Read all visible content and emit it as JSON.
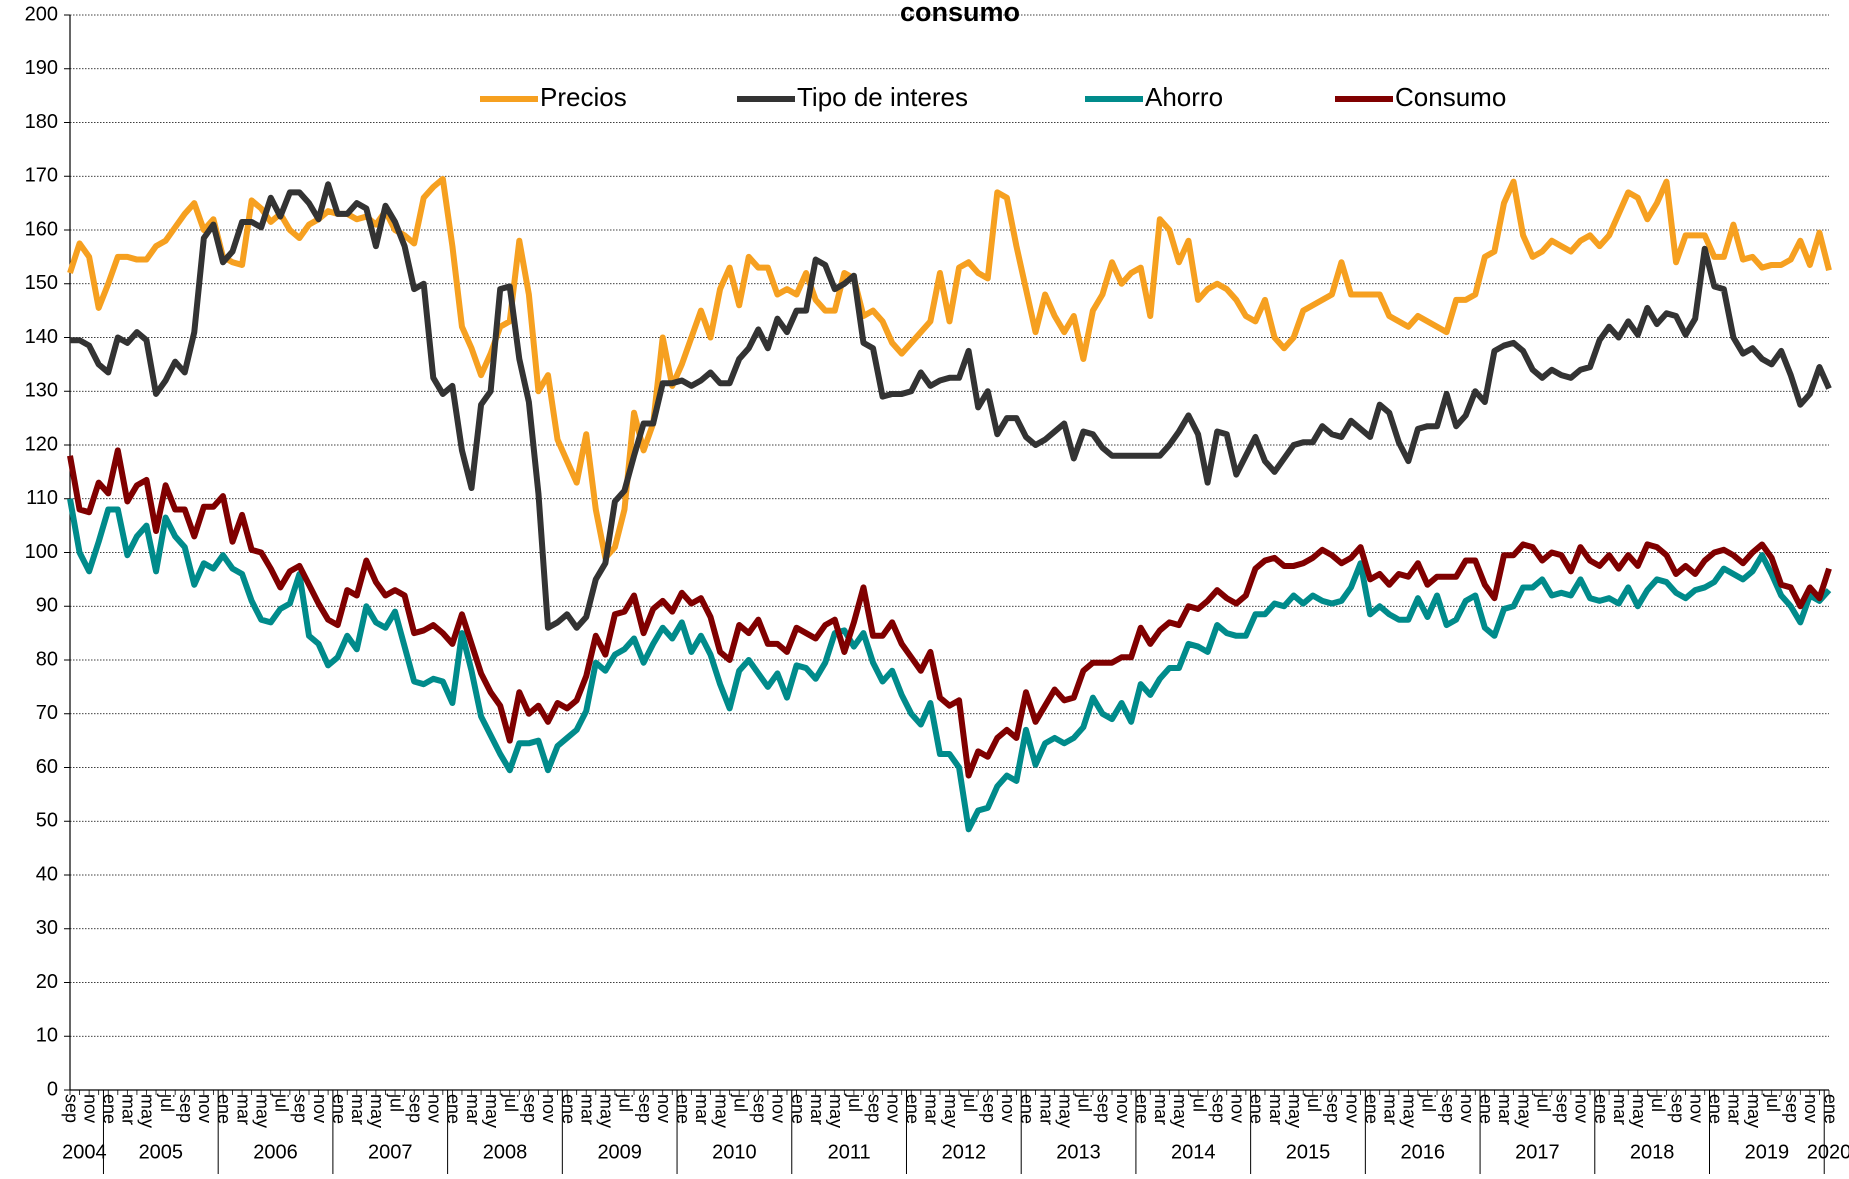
{
  "chart_data": {
    "type": "line",
    "title": "consumo",
    "categories": [
      "sep",
      null,
      "nov",
      null,
      "ene",
      null,
      "mar",
      null,
      "may",
      null,
      "jul",
      null,
      "sep",
      null,
      "nov",
      null,
      "ene",
      null,
      "mar",
      null,
      "may",
      null,
      "jul",
      null,
      "sep",
      null,
      "nov",
      null,
      "ene",
      null,
      "mar",
      null,
      "may",
      null,
      "jul",
      null,
      "sep",
      null,
      "nov",
      null,
      "ene",
      null,
      "mar",
      null,
      "may",
      null,
      "jul",
      null,
      "sep",
      null,
      "nov",
      null,
      "ene",
      null,
      "mar",
      null,
      "may",
      null,
      "jul",
      null,
      "sep",
      null,
      "nov",
      null,
      "ene",
      null,
      "mar",
      null,
      "may",
      null,
      "jul",
      null,
      "sep",
      null,
      "nov",
      null,
      "ene",
      null,
      "mar",
      null,
      "may",
      null,
      "jul",
      null,
      "sep",
      null,
      "nov",
      null,
      "ene",
      null,
      "mar",
      null,
      "may",
      null,
      "jul",
      null,
      "sep",
      null,
      "nov",
      null,
      "ene",
      null,
      "mar",
      null,
      "may",
      null,
      "jul",
      null,
      "sep",
      null,
      "nov",
      null,
      "ene",
      null,
      "mar",
      null,
      "may",
      null,
      "jul",
      null,
      "sep",
      null,
      "nov",
      null,
      "ene",
      null,
      "mar",
      null,
      "may",
      null,
      "jul",
      null,
      "sep",
      null,
      "nov",
      null,
      "ene",
      null,
      "mar",
      null,
      "may",
      null,
      "jul",
      null,
      "sep",
      null,
      "nov",
      null,
      "ene",
      null,
      "mar",
      null,
      "may",
      null,
      "jul",
      null,
      "sep",
      null,
      "nov",
      null,
      "ene",
      null,
      "mar",
      null,
      "may",
      null,
      "jul",
      null,
      "sep",
      null,
      "nov",
      null,
      "ene",
      null,
      "mar",
      null,
      "may",
      null,
      "jul",
      null,
      "sep",
      null,
      "nov",
      null,
      "ene"
    ],
    "year_labels": [
      "2004",
      "2005",
      "2006",
      "2007",
      "2008",
      "2009",
      "2010",
      "2011",
      "2012",
      "2013",
      "2014",
      "2015",
      "2016",
      "2017",
      "2018",
      "2019",
      "2020"
    ],
    "series": [
      {
        "name": "Precios",
        "color": "#f6a020",
        "values": [
          152,
          157.5,
          155,
          145.5,
          150,
          155,
          155,
          154.5,
          154.5,
          157,
          158,
          160.5,
          163,
          165,
          160,
          162,
          155,
          154,
          153.5,
          165.5,
          164,
          161.5,
          163,
          160,
          158.5,
          161,
          162,
          163.5,
          163,
          163,
          162,
          162.5,
          161,
          163.5,
          160,
          159,
          157.5,
          166,
          168,
          169.5,
          157,
          142,
          138,
          133,
          137,
          142,
          143,
          158,
          148,
          130,
          133,
          121,
          117,
          113,
          122,
          108,
          99,
          101,
          108,
          126,
          119,
          124,
          140,
          131,
          135,
          140,
          145,
          140,
          149,
          153,
          146,
          155,
          153,
          153,
          148,
          149,
          148,
          152,
          147,
          145,
          145,
          152,
          151,
          144,
          145,
          143,
          139,
          137,
          139,
          141,
          143,
          152,
          143,
          153,
          154,
          152,
          151,
          167,
          166,
          157,
          149,
          141,
          148,
          144,
          141,
          144,
          136,
          145,
          148,
          154,
          150,
          152,
          153,
          144,
          162,
          160,
          154,
          158,
          147,
          149,
          150,
          149,
          147,
          144,
          143,
          147,
          140,
          138,
          140,
          145,
          146,
          147,
          148,
          154,
          148,
          148,
          148,
          148,
          144,
          143,
          142,
          144,
          143,
          142,
          141,
          147,
          147,
          148,
          155,
          156,
          165,
          169,
          159,
          155,
          156,
          158,
          157,
          156,
          158,
          159,
          157,
          159,
          163,
          167,
          166,
          162,
          165,
          169,
          154,
          159,
          159,
          159,
          155,
          155,
          161,
          154.5,
          155,
          153,
          153.5,
          153.5,
          154.5,
          158,
          153.5,
          159.5,
          152.5
        ]
      },
      {
        "name": "Tipo de interes",
        "color": "#333333",
        "values": [
          139.5,
          139.5,
          138.5,
          135,
          133.5,
          140,
          139,
          141,
          139.5,
          129.5,
          132,
          135.5,
          133.5,
          141,
          158.5,
          161,
          154,
          156,
          161.5,
          161.5,
          160.5,
          166,
          162.5,
          167,
          167,
          165,
          162,
          168.5,
          163,
          163,
          165,
          164,
          157,
          164.5,
          161.5,
          157,
          149,
          150,
          132.5,
          129.5,
          131,
          119,
          112,
          127.5,
          130,
          149,
          149.5,
          136,
          128,
          111,
          86,
          87,
          88.5,
          86,
          88,
          95,
          98,
          109.5,
          111.5,
          118,
          124,
          124,
          131.5,
          131.5,
          132,
          131,
          132,
          133.5,
          131.5,
          131.5,
          136,
          138,
          141.5,
          138,
          143.5,
          141,
          145,
          145,
          154.5,
          153.5,
          149,
          150,
          151.5,
          139,
          138,
          129,
          129.5,
          129.5,
          130,
          133.5,
          131,
          132,
          132.5,
          132.5,
          137.5,
          127,
          130,
          122,
          125,
          125,
          121.5,
          120,
          121,
          122.5,
          124,
          117.5,
          122.5,
          122,
          119.5,
          118,
          118,
          118,
          118,
          118,
          118,
          120,
          122.5,
          125.5,
          122,
          113,
          122.5,
          122,
          114.5,
          118,
          121.5,
          117,
          115,
          117.5,
          120,
          120.5,
          120.5,
          123.5,
          122,
          121.5,
          124.5,
          123,
          121.5,
          127.5,
          126,
          120.5,
          117,
          123,
          123.5,
          123.5,
          129.5,
          123.5,
          125.5,
          130,
          128,
          137.5,
          138.5,
          139,
          137.5,
          134,
          132.5,
          134,
          133,
          132.5,
          134,
          134.5,
          139.5,
          142,
          140,
          143,
          140.5,
          145.5,
          142.5,
          144.5,
          144,
          140.5,
          143.5,
          156.5,
          149.5,
          149,
          140,
          137,
          138,
          136,
          135,
          137.5,
          133,
          127.5,
          129.5,
          134.5,
          130.5
        ]
      },
      {
        "name": "Ahorro",
        "color": "#008b8b",
        "values": [
          110,
          100,
          96.5,
          102,
          108,
          108,
          99.5,
          103,
          105,
          96.5,
          106.5,
          103,
          101,
          94,
          98,
          97,
          99.5,
          97,
          96,
          91,
          87.5,
          87,
          89.5,
          90.5,
          96,
          84.5,
          83,
          79,
          80.5,
          84.5,
          82,
          90,
          87,
          86,
          89,
          82.5,
          76,
          75.5,
          76.5,
          76,
          72,
          85,
          78,
          69.5,
          66,
          62.5,
          59.5,
          64.5,
          64.5,
          65,
          59.5,
          64,
          65.5,
          67,
          70.5,
          79.5,
          78,
          81,
          82,
          84,
          79.5,
          83,
          86,
          84,
          87,
          81.5,
          84.5,
          81,
          75.5,
          71,
          78,
          80,
          77.5,
          75,
          77.5,
          73,
          79,
          78.5,
          76.5,
          79.5,
          85,
          85.5,
          82.5,
          85,
          79.5,
          76,
          78,
          73.5,
          70,
          68,
          72,
          62.5,
          62.5,
          60,
          48.5,
          52,
          52.5,
          56.5,
          58.5,
          57.5,
          67,
          60.5,
          64.5,
          65.5,
          64.5,
          65.5,
          67.5,
          73,
          70,
          69,
          72,
          68.5,
          75.5,
          73.5,
          76.5,
          78.5,
          78.5,
          83,
          82.5,
          81.5,
          86.5,
          85,
          84.5,
          84.5,
          88.5,
          88.5,
          90.5,
          90,
          92,
          90.5,
          92,
          91,
          90.5,
          91,
          93.5,
          98,
          88.5,
          90,
          88.5,
          87.5,
          87.5,
          91.5,
          88,
          92,
          86.5,
          87.5,
          91,
          92,
          86,
          84.5,
          89.5,
          90,
          93.5,
          93.5,
          95,
          92,
          92.5,
          92,
          95,
          91.5,
          91,
          91.5,
          90.5,
          93.5,
          90,
          93,
          95,
          94.5,
          92.5,
          91.5,
          93,
          93.5,
          94.5,
          97,
          96,
          95,
          96.5,
          99.5,
          96,
          92,
          90,
          87,
          92,
          91,
          93
        ]
      },
      {
        "name": "Consumo",
        "color": "#800000",
        "values": [
          118,
          108,
          107.5,
          113,
          111,
          119,
          109.5,
          112.5,
          113.5,
          104,
          112.5,
          108,
          108,
          103,
          108.5,
          108.5,
          110.5,
          102,
          107,
          100.5,
          100,
          97,
          93.5,
          96.5,
          97.5,
          94,
          90.5,
          87.5,
          86.5,
          93,
          92,
          98.5,
          94.5,
          92,
          93,
          92,
          85,
          85.5,
          86.5,
          85,
          83,
          88.5,
          83,
          77.5,
          74,
          71.5,
          65,
          74,
          70,
          71.5,
          68.5,
          72,
          71,
          72.5,
          77,
          84.5,
          81,
          88.5,
          89,
          92,
          85,
          89.5,
          91,
          89,
          92.5,
          90.5,
          91.5,
          88,
          81.5,
          80,
          86.5,
          85,
          87.5,
          83,
          83,
          81.5,
          86,
          85,
          84,
          86.5,
          87.5,
          81.5,
          87,
          93.5,
          84.5,
          84.5,
          87,
          83,
          80.5,
          78,
          81.5,
          73,
          71.5,
          72.5,
          58.5,
          63,
          62,
          65.5,
          67,
          65.5,
          74,
          68.5,
          71.5,
          74.5,
          72.5,
          73,
          78,
          79.5,
          79.5,
          79.5,
          80.5,
          80.5,
          86,
          83,
          85.5,
          87,
          86.5,
          90,
          89.5,
          91,
          93,
          91.5,
          90.5,
          92,
          97,
          98.5,
          99,
          97.5,
          97.5,
          98,
          99,
          100.5,
          99.5,
          98,
          99,
          101,
          95,
          96,
          94,
          96,
          95.5,
          98,
          94,
          95.5,
          95.5,
          95.5,
          98.5,
          98.5,
          94,
          91.5,
          99.5,
          99.5,
          101.5,
          101,
          98.5,
          100,
          99.5,
          96.5,
          101,
          98.5,
          97.5,
          99.5,
          97,
          99.5,
          97.5,
          101.5,
          101,
          99.5,
          96,
          97.5,
          96,
          98.5,
          100,
          100.5,
          99.5,
          98,
          100,
          101.5,
          99,
          94,
          93.5,
          90,
          93.5,
          91.5,
          97
        ]
      }
    ],
    "ylim": [
      0,
      200
    ],
    "yticks": [
      0,
      10,
      20,
      30,
      40,
      50,
      60,
      70,
      80,
      90,
      100,
      110,
      120,
      130,
      140,
      150,
      160,
      170,
      180,
      190,
      200
    ],
    "grid": true,
    "legend": "top"
  }
}
